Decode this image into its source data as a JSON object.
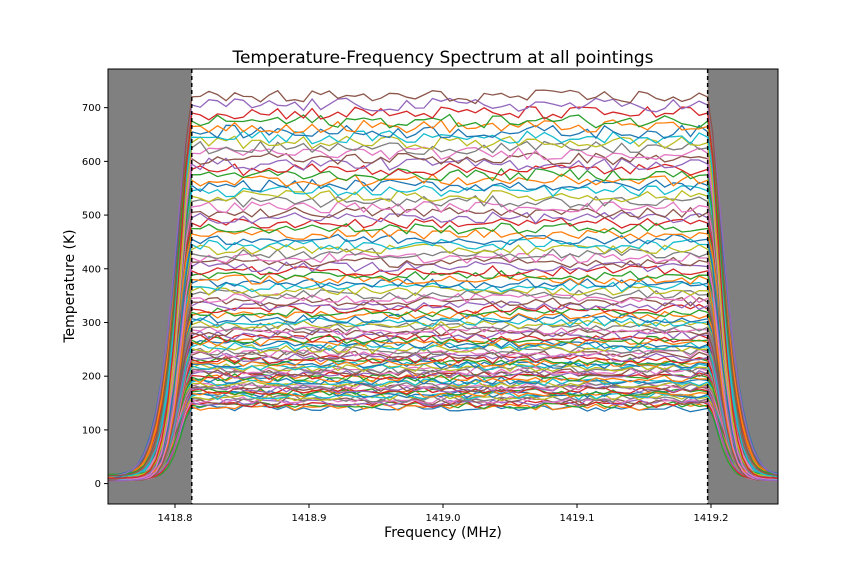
{
  "chart_data": {
    "type": "line",
    "title": "Temperature-Frequency Spectrum at all pointings",
    "xlabel": "Frequency (MHz)",
    "ylabel": "Temperature (K)",
    "xlim": [
      1418.75,
      1419.25
    ],
    "ylim": [
      -38,
      772
    ],
    "xticks": [
      1418.8,
      1418.9,
      1419.0,
      1419.1,
      1419.2
    ],
    "xtick_labels": [
      "1418.8",
      "1418.9",
      "1419.0",
      "1419.1",
      "1419.2"
    ],
    "yticks": [
      0,
      100,
      200,
      300,
      400,
      500,
      600,
      700
    ],
    "ytick_labels": [
      "0",
      "100",
      "200",
      "300",
      "400",
      "500",
      "600",
      "700"
    ],
    "shaded_regions": [
      [
        1418.75,
        1418.8125
      ],
      [
        1419.1975,
        1419.25
      ]
    ],
    "shade_color": "#808080",
    "vlines": [
      1418.8125,
      1419.1975
    ],
    "vline_style": "dashed",
    "passband_start": 1418.8125,
    "passband_end": 1419.1975,
    "series_levels": [
      140,
      143,
      146,
      148,
      151,
      153,
      156,
      158,
      161,
      163,
      166,
      168,
      171,
      173,
      176,
      178,
      181,
      183,
      186,
      189,
      192,
      195,
      198,
      201,
      204,
      207,
      210,
      213,
      216,
      219,
      222,
      225,
      228,
      231,
      235,
      239,
      243,
      247,
      251,
      255,
      259,
      263,
      267,
      271,
      276,
      281,
      286,
      291,
      296,
      301,
      307,
      313,
      319,
      325,
      331,
      338,
      345,
      352,
      359,
      366,
      373,
      380,
      388,
      396,
      404,
      412,
      420,
      428,
      436,
      445,
      455,
      465,
      475,
      485,
      495,
      505,
      515,
      525,
      535,
      545,
      555,
      565,
      575,
      585,
      595,
      605,
      615,
      625,
      635,
      645,
      655,
      665,
      675,
      690,
      705,
      720
    ],
    "noise_amplitude": 8,
    "grid": false,
    "colors": [
      "#1f77b4",
      "#ff7f0e",
      "#2ca02c",
      "#d62728",
      "#9467bd",
      "#8c564b",
      "#e377c2",
      "#7f7f7f",
      "#bcbd22",
      "#17becf"
    ]
  }
}
